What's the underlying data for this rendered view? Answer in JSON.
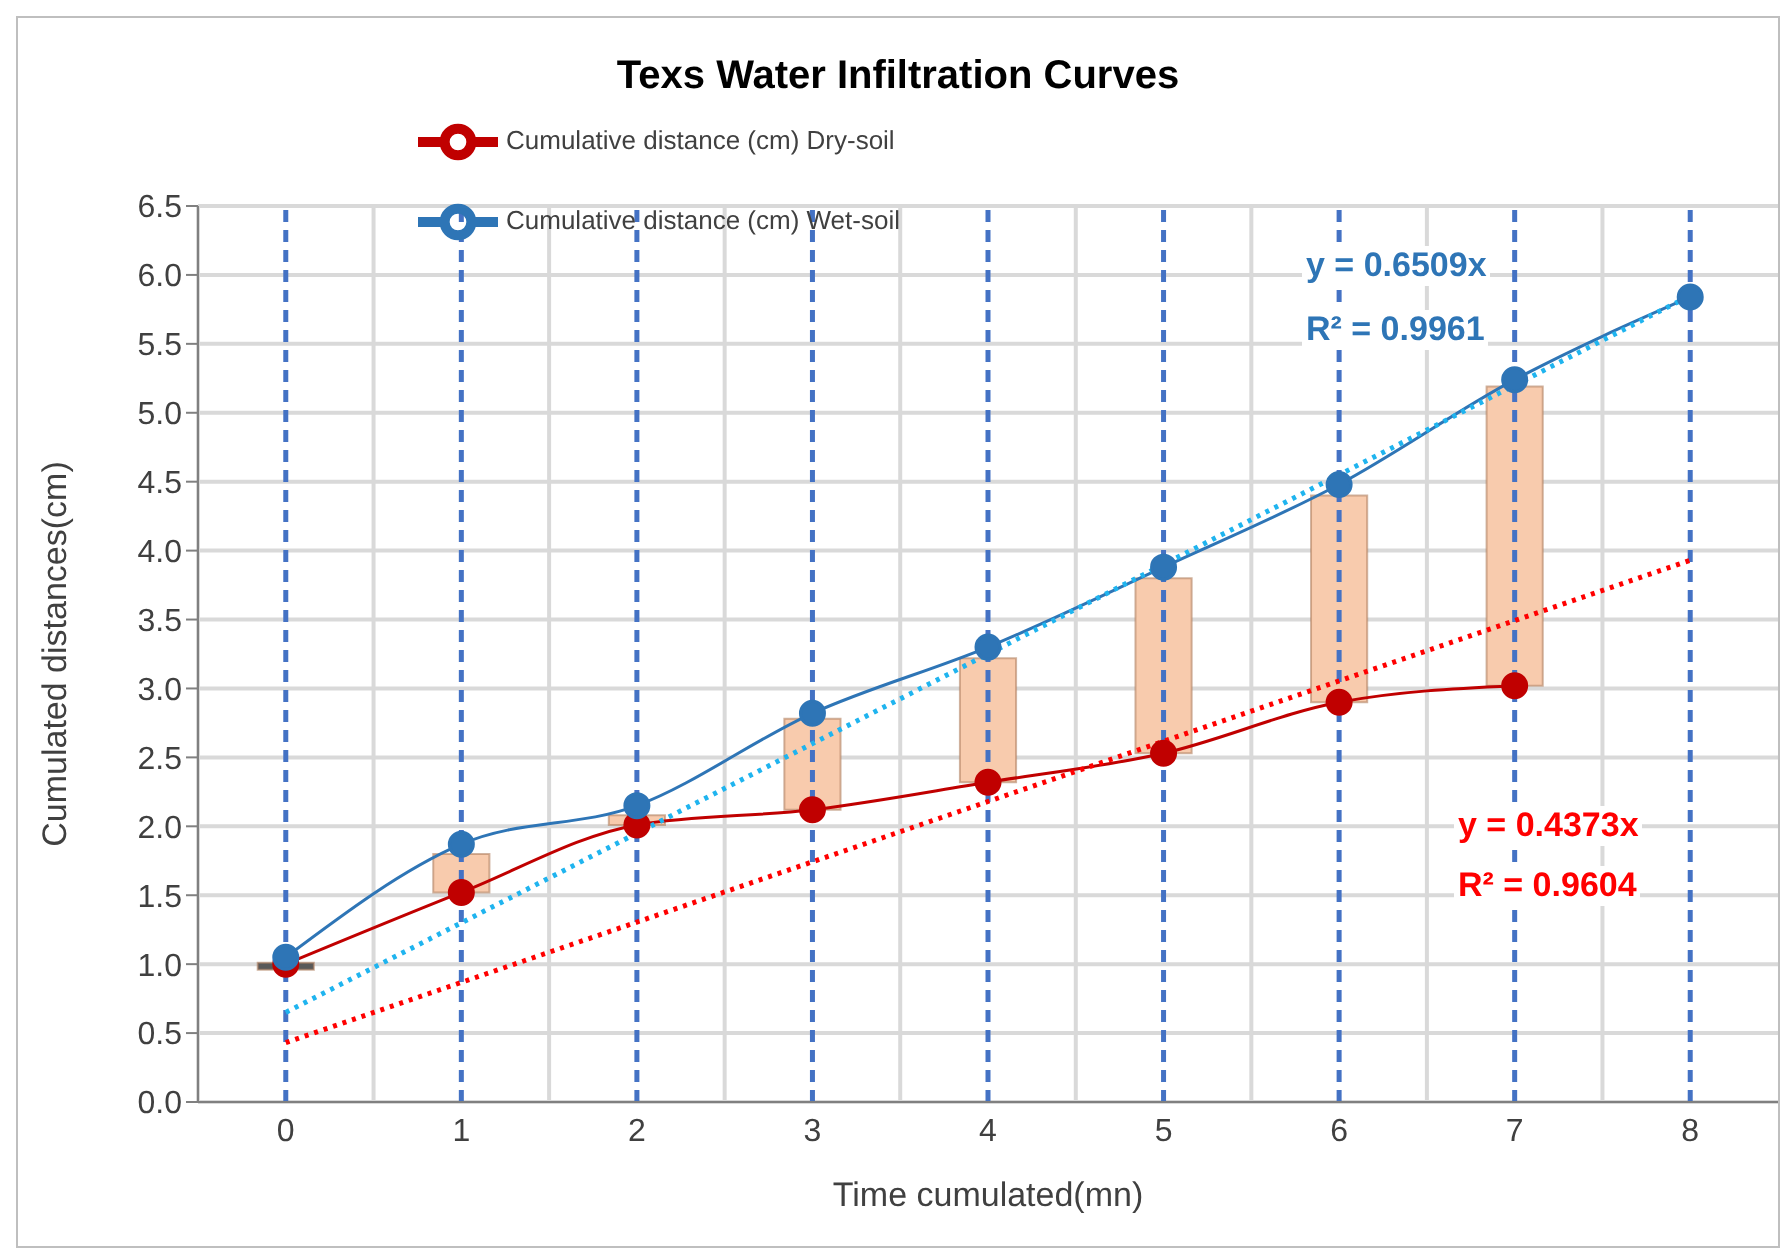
{
  "chart_data": {
    "type": "line",
    "title": "Texs Water Infiltration Curves",
    "xlabel": "Time cumulated(mn)",
    "ylabel": "Cumulated distances(cm)",
    "x": [
      0,
      1,
      2,
      3,
      4,
      5,
      6,
      7,
      8
    ],
    "xlim": [
      -0.5,
      8.5
    ],
    "xticks": [
      0,
      1,
      2,
      3,
      4,
      5,
      6,
      7,
      8
    ],
    "ylim": [
      0,
      6.5
    ],
    "yticks": [
      {
        "value": 0,
        "label": "0.0"
      },
      0.5,
      {
        "value": 1,
        "label": "1.0"
      },
      1.5,
      {
        "value": 2,
        "label": "2.0"
      },
      2.5,
      {
        "value": 3,
        "label": "3.0"
      },
      3.5,
      {
        "value": 4,
        "label": "4.0"
      },
      4.5,
      {
        "value": 5,
        "label": "5.0"
      },
      5.5,
      {
        "value": 6,
        "label": "6.0"
      },
      6.5
    ],
    "grid": true,
    "legend": "top",
    "marker": "circle",
    "series": [
      {
        "name": "Cumulative distance (cm) Dry-soil",
        "color": "#c00000",
        "x": [
          0,
          1,
          2,
          3,
          4,
          5,
          6,
          7
        ],
        "values": [
          1.0,
          1.52,
          2.01,
          2.12,
          2.32,
          2.53,
          2.9,
          3.02
        ]
      },
      {
        "name": "Cumulative distance (cm) Wet-soil",
        "color": "#2e75b6",
        "values": [
          1.05,
          1.87,
          2.15,
          2.82,
          3.3,
          3.88,
          4.48,
          5.24,
          5.84
        ]
      },
      {
        "type": "bar",
        "x": [
          0,
          1,
          2,
          3,
          4,
          5,
          6,
          7
        ],
        "colors": [
          "#595959",
          "#f8cbad",
          "#f8cbad",
          "#f8cbad",
          "#f8cbad",
          "#f8cbad",
          "#f8cbad",
          "#f8cbad"
        ],
        "base": [
          0.96,
          1.52,
          2.01,
          2.12,
          2.32,
          2.53,
          2.9,
          3.02
        ],
        "values": [
          0.05,
          0.28,
          0.07,
          0.66,
          0.9,
          1.27,
          1.5,
          2.17
        ]
      },
      {
        "type": "line",
        "color": "#1fb4ef",
        "x": [
          0,
          8
        ],
        "values": [
          0.65,
          5.85
        ],
        "marker": "none",
        "line_style": "dotted"
      },
      {
        "type": "line",
        "color": "#ff0000",
        "x": [
          0,
          8
        ],
        "values": [
          0.43,
          3.93
        ],
        "marker": "none",
        "line_style": "dotted"
      }
    ],
    "ref_lines": [
      {
        "axis": "x",
        "value": 0,
        "color": "#4472c4",
        "line_style": "dashed"
      },
      {
        "axis": "x",
        "value": 1,
        "color": "#4472c4",
        "line_style": "dashed"
      },
      {
        "axis": "x",
        "value": 2,
        "color": "#4472c4",
        "line_style": "dashed"
      },
      {
        "axis": "x",
        "value": 3,
        "color": "#4472c4",
        "line_style": "dashed"
      },
      {
        "axis": "x",
        "value": 4,
        "color": "#4472c4",
        "line_style": "dashed"
      },
      {
        "axis": "x",
        "value": 5,
        "color": "#4472c4",
        "line_style": "dashed"
      },
      {
        "axis": "x",
        "value": 6,
        "color": "#4472c4",
        "line_style": "dashed"
      },
      {
        "axis": "x",
        "value": 7,
        "color": "#4472c4",
        "line_style": "dashed"
      },
      {
        "axis": "x",
        "value": 8,
        "color": "#4472c4",
        "line_style": "dashed"
      }
    ],
    "annotations": [
      "y = 0.6509x",
      "R² = 0.9961",
      "y = 0.4373x",
      "R² = 0.9604"
    ]
  }
}
